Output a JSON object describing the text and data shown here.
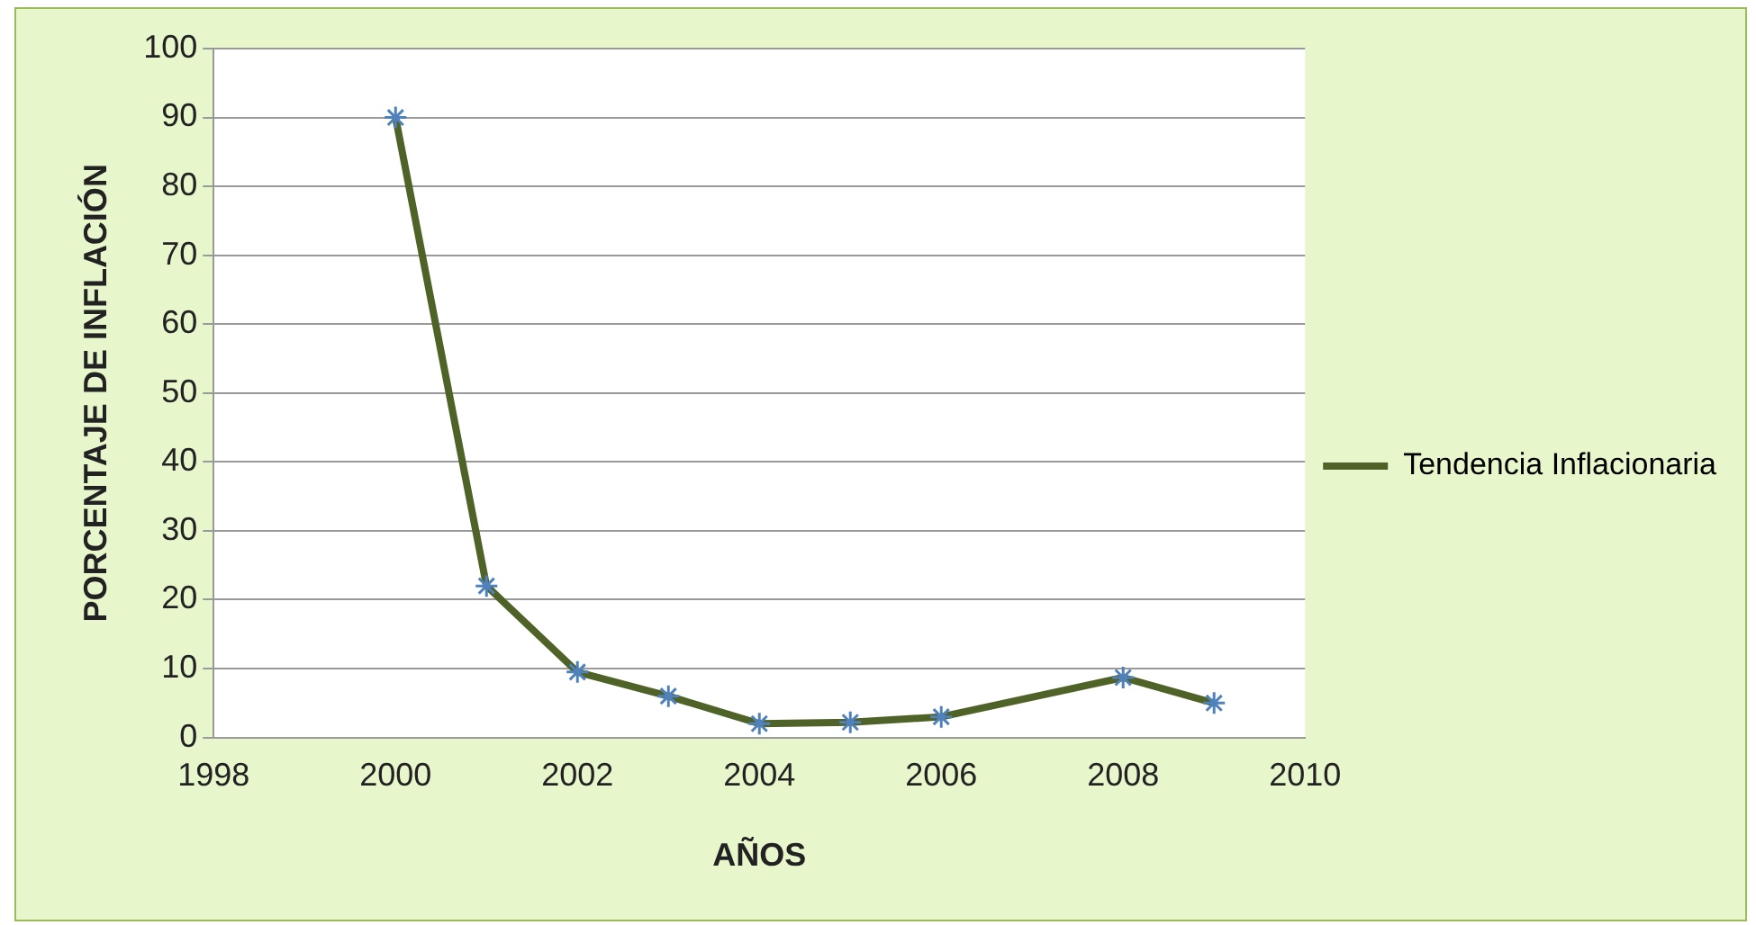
{
  "chart_data": {
    "type": "line",
    "xlabel": "AÑOS",
    "ylabel": "PORCENTAJE DE INFLACIÓN",
    "x": [
      2000,
      2001,
      2002,
      2003,
      2004,
      2005,
      2006,
      2008,
      2009
    ],
    "series": [
      {
        "name": "Tendencia Inflacionaria",
        "color": "#4f6228",
        "values": [
          90,
          22,
          9.5,
          6,
          2,
          2.2,
          3,
          8.7,
          5
        ]
      }
    ],
    "xlim": [
      1998,
      2010
    ],
    "xticks": [
      1998,
      2000,
      2002,
      2004,
      2006,
      2008,
      2010
    ],
    "ylim": [
      0,
      100
    ],
    "yticks": [
      0,
      10,
      20,
      30,
      40,
      50,
      60,
      70,
      80,
      90,
      100
    ],
    "grid": "y",
    "legend": "right",
    "marker": "cross",
    "line_style": "solid"
  }
}
